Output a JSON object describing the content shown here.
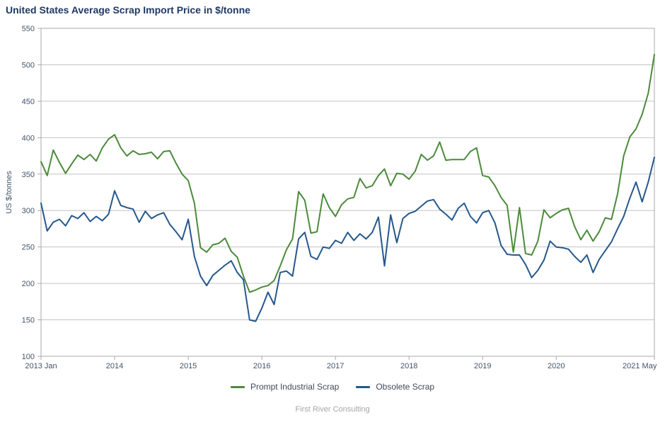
{
  "title": "United States Average Scrap Import Price in $/tonne",
  "footer": "First River Consulting",
  "colors": {
    "title_text": "#1f3864",
    "axis_text": "#44546a",
    "gridline": "#c3c3c3",
    "frame": "#a9a9a9",
    "background": "#ffffff",
    "prompt_series": "#4b8a3a",
    "obsolete_series": "#26588c",
    "footer_text": "#a6a6a6"
  },
  "chart_data": {
    "type": "line",
    "title": "United States Average Scrap Import Price in $/tonne",
    "xlabel": "",
    "ylabel": "US $/tonnes",
    "ylim": [
      100,
      550
    ],
    "y_ticks": [
      100,
      150,
      200,
      250,
      300,
      350,
      400,
      450,
      500,
      550
    ],
    "grid": true,
    "legend_position": "bottom",
    "x_ticks": [
      {
        "label": "2013 Jan",
        "month": 0
      },
      {
        "label": "2014",
        "month": 12
      },
      {
        "label": "2015",
        "month": 24
      },
      {
        "label": "2016",
        "month": 36
      },
      {
        "label": "2017",
        "month": 48
      },
      {
        "label": "2018",
        "month": 60
      },
      {
        "label": "2019",
        "month": 72
      },
      {
        "label": "2020",
        "month": 84
      },
      {
        "label": "2021 May",
        "month": 100,
        "label_month": 97.6
      }
    ],
    "months": [
      "2013-01",
      "2013-02",
      "2013-03",
      "2013-04",
      "2013-05",
      "2013-06",
      "2013-07",
      "2013-08",
      "2013-09",
      "2013-10",
      "2013-11",
      "2013-12",
      "2014-01",
      "2014-02",
      "2014-03",
      "2014-04",
      "2014-05",
      "2014-06",
      "2014-07",
      "2014-08",
      "2014-09",
      "2014-10",
      "2014-11",
      "2014-12",
      "2015-01",
      "2015-02",
      "2015-03",
      "2015-04",
      "2015-05",
      "2015-06",
      "2015-07",
      "2015-08",
      "2015-09",
      "2015-10",
      "2015-11",
      "2015-12",
      "2016-01",
      "2016-02",
      "2016-03",
      "2016-04",
      "2016-05",
      "2016-06",
      "2016-07",
      "2016-08",
      "2016-09",
      "2016-10",
      "2016-11",
      "2016-12",
      "2017-01",
      "2017-02",
      "2017-03",
      "2017-04",
      "2017-05",
      "2017-06",
      "2017-07",
      "2017-08",
      "2017-09",
      "2017-10",
      "2017-11",
      "2017-12",
      "2018-01",
      "2018-02",
      "2018-03",
      "2018-04",
      "2018-05",
      "2018-06",
      "2018-07",
      "2018-08",
      "2018-09",
      "2018-10",
      "2018-11",
      "2018-12",
      "2019-01",
      "2019-02",
      "2019-03",
      "2019-04",
      "2019-05",
      "2019-06",
      "2019-07",
      "2019-08",
      "2019-09",
      "2019-10",
      "2019-11",
      "2019-12",
      "2020-01",
      "2020-02",
      "2020-03",
      "2020-04",
      "2020-05",
      "2020-06",
      "2020-07",
      "2020-08",
      "2020-09",
      "2020-10",
      "2020-11",
      "2020-12",
      "2021-01",
      "2021-02",
      "2021-03",
      "2021-04",
      "2021-05"
    ],
    "series": [
      {
        "name": "Prompt Industrial Scrap",
        "color": "#4b8a3a",
        "values": [
          367,
          348,
          383,
          366,
          351,
          364,
          376,
          370,
          377,
          368,
          386,
          398,
          404,
          386,
          375,
          382,
          377,
          378,
          380,
          371,
          381,
          382,
          365,
          350,
          341,
          310,
          249,
          243,
          253,
          255,
          262,
          244,
          236,
          210,
          188,
          191,
          195,
          197,
          204,
          224,
          246,
          261,
          326,
          314,
          269,
          271,
          323,
          304,
          292,
          308,
          316,
          318,
          344,
          331,
          334,
          348,
          357,
          334,
          351,
          350,
          343,
          354,
          377,
          369,
          375,
          394,
          369,
          370,
          370,
          370,
          381,
          386,
          348,
          346,
          334,
          318,
          307,
          243,
          304,
          241,
          239,
          258,
          301,
          290,
          296,
          301,
          303,
          278,
          260,
          273,
          258,
          271,
          290,
          288,
          323,
          375,
          401,
          412,
          432,
          461,
          514
        ]
      },
      {
        "name": "Obsolete Scrap",
        "color": "#26588c",
        "values": [
          310,
          272,
          284,
          288,
          279,
          293,
          289,
          297,
          285,
          292,
          286,
          295,
          327,
          307,
          304,
          302,
          284,
          299,
          289,
          294,
          297,
          281,
          271,
          260,
          288,
          237,
          210,
          197,
          211,
          218,
          225,
          231,
          215,
          205,
          150,
          148,
          166,
          188,
          171,
          215,
          217,
          210,
          261,
          270,
          237,
          233,
          250,
          248,
          259,
          255,
          270,
          259,
          268,
          261,
          270,
          291,
          224,
          294,
          256,
          289,
          296,
          299,
          306,
          313,
          315,
          302,
          295,
          287,
          303,
          310,
          292,
          283,
          297,
          300,
          283,
          252,
          240,
          239,
          239,
          226,
          208,
          218,
          232,
          258,
          250,
          249,
          247,
          237,
          229,
          239,
          215,
          233,
          245,
          257,
          275,
          292,
          317,
          339,
          312,
          339,
          373
        ]
      }
    ]
  },
  "legend": {
    "items": [
      {
        "label": "Prompt Industrial Scrap"
      },
      {
        "label": "Obsolete Scrap"
      }
    ]
  }
}
